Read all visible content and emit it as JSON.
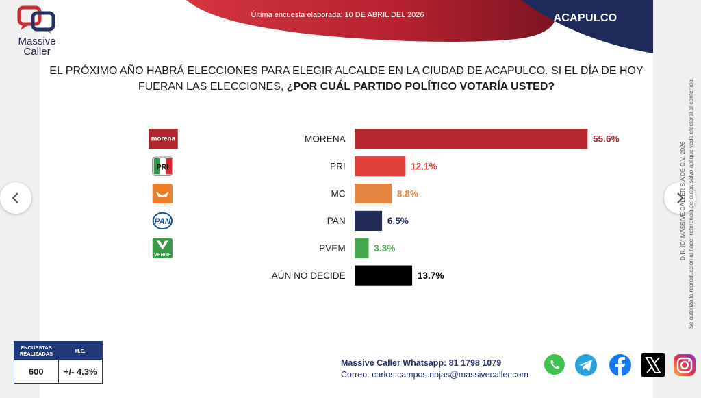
{
  "header": {
    "brand_line1": "Massive",
    "brand_line2": "Caller",
    "survey_date": "Última encuesta elaborada: 10 DE ABRIL DEL 2026",
    "city": "ACAPULCO"
  },
  "question": {
    "part1_line1": "EL PRÓXIMO AÑO HABRÁ ELECCIONES PARA ELEGIR ALCALDE EN LA CIUDAD DE ACAPULCO. SI EL DÍA DE HOY",
    "part1_line2": "FUERAN LAS ELECCIONES, ",
    "part2": "¿POR CUÁL PARTIDO POLÍTICO VOTARÍA USTED?"
  },
  "chart_data": {
    "type": "bar",
    "orientation": "horizontal",
    "categories": [
      "MORENA",
      "PRI",
      "MC",
      "PAN",
      "PVEM",
      "AÚN NO DECIDE"
    ],
    "values": [
      55.6,
      12.1,
      8.8,
      6.5,
      3.3,
      13.7
    ],
    "value_labels": [
      "55.6%",
      "12.1%",
      "8.8%",
      "6.5%",
      "3.3%",
      "13.7%"
    ],
    "colors": [
      "#b5292d",
      "#e2403a",
      "#e3853f",
      "#1f2a56",
      "#46a94f",
      "#000000"
    ],
    "label_colors": [
      "#b5292d",
      "#e2403a",
      "#e3853f",
      "#1f2a56",
      "#46a94f",
      "#000000"
    ],
    "logo_icons": [
      "morena-logo-icon",
      "pri-logo-icon",
      "mc-logo-icon",
      "pan-logo-icon",
      "pvem-logo-icon",
      ""
    ],
    "logo_texts": [
      "morena",
      "PRI",
      "",
      "PAN",
      "VERDE",
      ""
    ],
    "xlim": [
      0,
      60
    ],
    "grid": false,
    "legend": "none"
  },
  "stats": {
    "surveys_header": "ENCUESTAS REALIZADAS",
    "me_header": "M.E.",
    "surveys_value": "600",
    "me_value": "+/- 4.3%"
  },
  "contact": {
    "whatsapp": "Massive Caller Whatsapp: 81 1798 1079",
    "email": "Correo: carlos.campos.riojas@massivecaller.com"
  },
  "legal": {
    "line1": "D.R. (C) MASSIVE CALLER S.A DE C.V. 2026",
    "line2": "Se autoriza la reproducción al hacer referencia del autor, salvo aplique veda electoral al contenido."
  },
  "nav": {
    "prev_icon": "chevron-left-icon",
    "next_icon": "chevron-right-icon"
  },
  "social": [
    "whatsapp-icon",
    "telegram-icon",
    "facebook-icon",
    "x-icon",
    "instagram-icon"
  ]
}
